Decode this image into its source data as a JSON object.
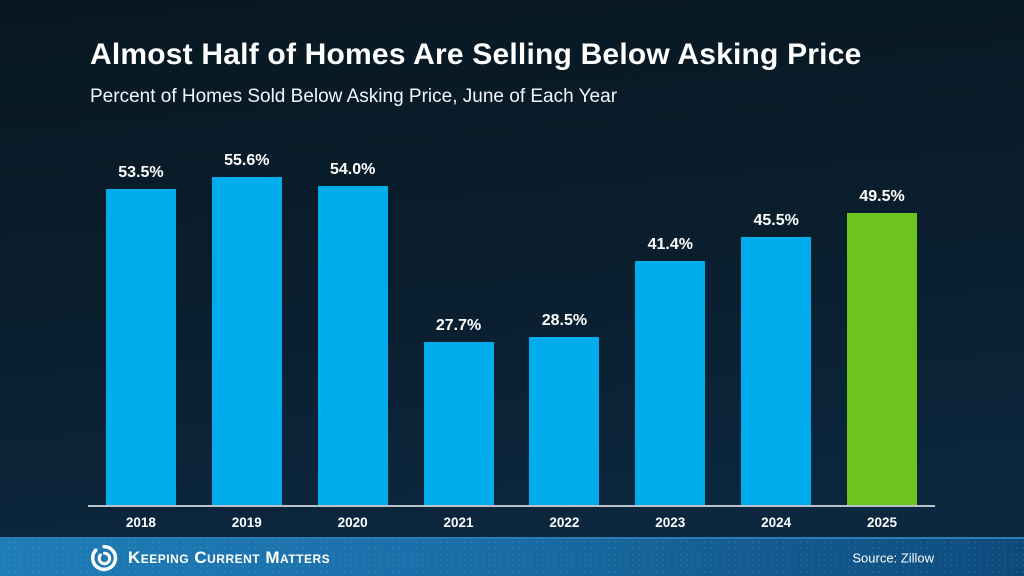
{
  "title": "Almost Half of Homes Are Selling Below Asking Price",
  "subtitle": "Percent of Homes Sold Below Asking Price, June of Each Year",
  "chart_data": {
    "type": "bar",
    "title": "Almost Half of Homes Are Selling Below Asking Price",
    "subtitle": "Percent of Homes Sold Below Asking Price, June of Each Year",
    "categories": [
      "2018",
      "2019",
      "2020",
      "2021",
      "2022",
      "2023",
      "2024",
      "2025"
    ],
    "values": [
      53.5,
      55.6,
      54.0,
      27.7,
      28.5,
      41.4,
      45.5,
      49.5
    ],
    "value_labels": [
      "53.5%",
      "55.6%",
      "54.0%",
      "27.7%",
      "28.5%",
      "41.4%",
      "45.5%",
      "49.5%"
    ],
    "highlight_index": 7,
    "bar_color": "#00ACEC",
    "highlight_color": "#6CC41C",
    "xlabel": "",
    "ylabel": "",
    "ylim": [
      0,
      61
    ],
    "grid": false,
    "legend": "none",
    "label_position": "above-bars"
  },
  "footer": {
    "brand": "Keeping Current Matters",
    "logo_icon": "kcm-swirl-icon",
    "source": "Source: Zillow"
  },
  "colors": {
    "background_top": "#081822",
    "background_bottom": "#0c2a44",
    "bar_blue": "#00ACEC",
    "bar_green": "#6CC41C",
    "axis_line": "#b9c2c9",
    "text": "#ffffff",
    "footer_left": "#1e7cb6",
    "footer_right": "#0d4a7c"
  }
}
